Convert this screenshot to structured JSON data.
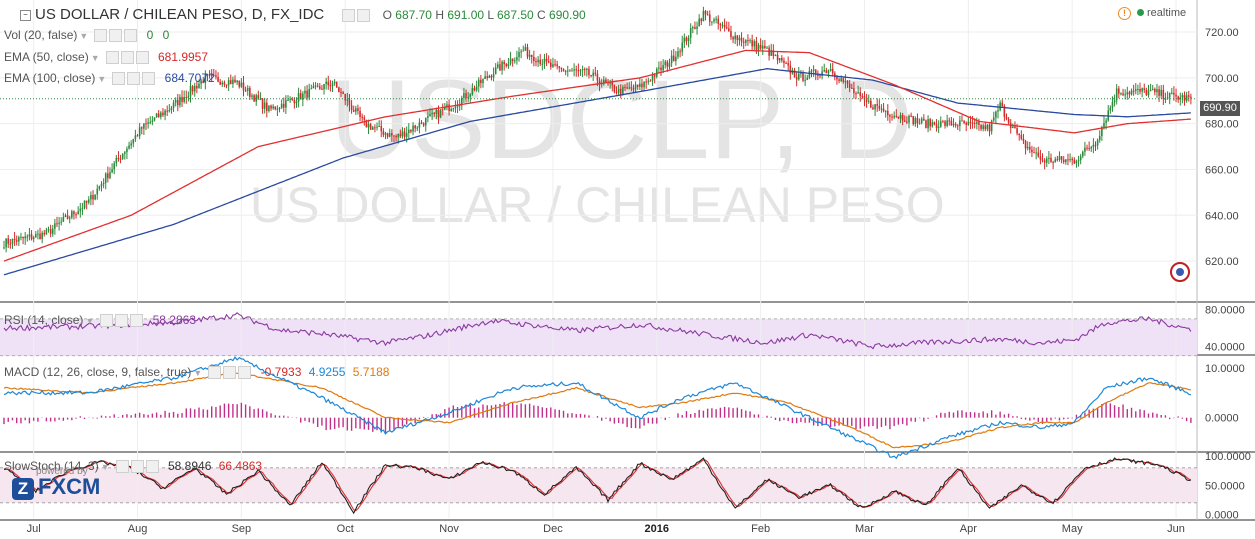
{
  "header": {
    "title": "US DOLLAR / CHILEAN PESO, D, FX_IDC",
    "ohlc": {
      "o_label": "O",
      "o": "687.70",
      "h_label": "H",
      "h": "691.00",
      "l_label": "L",
      "l": "687.50",
      "c_label": "C",
      "c": "690.90"
    },
    "realtime": "realtime"
  },
  "indicators": {
    "vol": {
      "label": "Vol (20, false)",
      "v1": "0",
      "v2": "0"
    },
    "ema50": {
      "label": "EMA (50, close)",
      "value": "681.9957"
    },
    "ema100": {
      "label": "EMA (100, close)",
      "value": "684.7072"
    },
    "rsi": {
      "label": "RSI (14, close)",
      "value": "58.2863"
    },
    "macd": {
      "label": "MACD (12, 26, close, 9, false, true)",
      "hist": "-0.7933",
      "macd": "4.9255",
      "signal": "5.7188"
    },
    "stoch": {
      "label": "SlowStoch (14, 3)",
      "k": "58.8946",
      "d": "66.4863"
    }
  },
  "watermark": {
    "symbol": "USDCLP, D",
    "name": "US DOLLAR / CHILEAN PESO"
  },
  "logo": {
    "text": "FXCM",
    "powered": "powered by"
  },
  "colors": {
    "up": "#2a8a3a",
    "down": "#d32a2a",
    "ema50": "#e03030",
    "ema100": "#2a4aa0",
    "rsi": "#8a3aa0",
    "macd": "#1e88d8",
    "signal": "#e07a10",
    "hist": "#c0308a",
    "k": "#222222",
    "d": "#e03030"
  },
  "chart_data": [
    {
      "type": "candlestick",
      "title": "US DOLLAR / CHILEAN PESO, D, FX_IDC",
      "x_labels": [
        "Jul",
        "Aug",
        "Sep",
        "Oct",
        "Nov",
        "Dec",
        "2016",
        "Feb",
        "Mar",
        "Apr",
        "May",
        "Jun"
      ],
      "x_label_days": [
        14,
        63,
        112,
        161,
        210,
        259,
        308,
        357,
        406,
        455,
        504,
        553
      ],
      "ylim": [
        603,
        734
      ],
      "yticks": [
        620,
        640,
        660,
        680,
        700,
        720
      ],
      "last_price": "690.90",
      "close_anchors": [
        [
          0,
          628
        ],
        [
          20,
          632
        ],
        [
          40,
          646
        ],
        [
          55,
          666
        ],
        [
          65,
          678
        ],
        [
          80,
          688
        ],
        [
          95,
          700
        ],
        [
          110,
          698
        ],
        [
          125,
          686
        ],
        [
          140,
          692
        ],
        [
          155,
          698
        ],
        [
          170,
          680
        ],
        [
          185,
          674
        ],
        [
          200,
          682
        ],
        [
          215,
          690
        ],
        [
          230,
          702
        ],
        [
          245,
          712
        ],
        [
          260,
          704
        ],
        [
          275,
          702
        ],
        [
          290,
          694
        ],
        [
          300,
          696
        ],
        [
          315,
          708
        ],
        [
          330,
          728
        ],
        [
          345,
          718
        ],
        [
          360,
          712
        ],
        [
          375,
          700
        ],
        [
          390,
          704
        ],
        [
          405,
          690
        ],
        [
          420,
          684
        ],
        [
          435,
          680
        ],
        [
          450,
          680
        ],
        [
          465,
          678
        ],
        [
          470,
          688
        ],
        [
          480,
          672
        ],
        [
          490,
          664
        ],
        [
          505,
          664
        ],
        [
          515,
          672
        ],
        [
          525,
          694
        ],
        [
          540,
          694
        ],
        [
          550,
          692
        ],
        [
          560,
          690.9
        ]
      ],
      "ema50_anchors": [
        [
          0,
          620
        ],
        [
          60,
          640
        ],
        [
          120,
          670
        ],
        [
          180,
          683
        ],
        [
          240,
          692
        ],
        [
          300,
          700
        ],
        [
          350,
          712
        ],
        [
          380,
          711
        ],
        [
          420,
          697
        ],
        [
          460,
          681
        ],
        [
          505,
          676
        ],
        [
          530,
          680
        ],
        [
          560,
          682
        ]
      ],
      "ema100_anchors": [
        [
          0,
          614
        ],
        [
          80,
          636
        ],
        [
          160,
          665
        ],
        [
          220,
          681
        ],
        [
          300,
          694
        ],
        [
          360,
          704
        ],
        [
          410,
          699
        ],
        [
          450,
          689
        ],
        [
          505,
          684
        ],
        [
          530,
          683
        ],
        [
          560,
          684.7
        ]
      ]
    },
    {
      "type": "line",
      "title": "RSI (14, close)",
      "ylim": [
        33,
        84
      ],
      "yticks": [
        "80.0000",
        "40.0000"
      ],
      "ytick_values": [
        80,
        40
      ],
      "last": 58.2863,
      "anchors": [
        [
          0,
          60
        ],
        [
          40,
          62
        ],
        [
          80,
          66
        ],
        [
          110,
          74
        ],
        [
          130,
          58
        ],
        [
          150,
          54
        ],
        [
          180,
          44
        ],
        [
          200,
          52
        ],
        [
          230,
          68
        ],
        [
          250,
          63
        ],
        [
          270,
          57
        ],
        [
          300,
          64
        ],
        [
          320,
          57
        ],
        [
          340,
          50
        ],
        [
          360,
          44
        ],
        [
          380,
          53
        ],
        [
          410,
          40
        ],
        [
          440,
          45
        ],
        [
          470,
          48
        ],
        [
          490,
          44
        ],
        [
          505,
          47
        ],
        [
          520,
          66
        ],
        [
          540,
          70
        ],
        [
          560,
          58.3
        ]
      ]
    },
    {
      "type": "line",
      "title": "MACD (12, 26, close, 9, false, true)",
      "ylim": [
        -6.5,
        12
      ],
      "yticks": [
        "10.0000",
        "0.0000"
      ],
      "ytick_values": [
        10,
        0
      ],
      "hist_last": -0.7933,
      "macd_last": 4.9255,
      "signal_last": 5.7188,
      "macd_anchors": [
        [
          0,
          5
        ],
        [
          40,
          5
        ],
        [
          80,
          8
        ],
        [
          110,
          12
        ],
        [
          150,
          4
        ],
        [
          180,
          -3
        ],
        [
          210,
          1
        ],
        [
          240,
          6
        ],
        [
          270,
          7
        ],
        [
          300,
          0
        ],
        [
          320,
          4
        ],
        [
          345,
          7
        ],
        [
          370,
          2
        ],
        [
          400,
          -4
        ],
        [
          420,
          -8
        ],
        [
          445,
          -4
        ],
        [
          470,
          -1
        ],
        [
          490,
          -2
        ],
        [
          505,
          -1
        ],
        [
          520,
          6
        ],
        [
          540,
          8
        ],
        [
          560,
          4.9
        ]
      ],
      "signal_anchors": [
        [
          0,
          6
        ],
        [
          40,
          5
        ],
        [
          80,
          7
        ],
        [
          110,
          9
        ],
        [
          150,
          6
        ],
        [
          180,
          0
        ],
        [
          210,
          -1
        ],
        [
          240,
          3
        ],
        [
          270,
          6
        ],
        [
          300,
          2
        ],
        [
          320,
          3
        ],
        [
          345,
          5
        ],
        [
          370,
          3
        ],
        [
          400,
          -2
        ],
        [
          420,
          -6
        ],
        [
          445,
          -5
        ],
        [
          470,
          -2
        ],
        [
          490,
          -1
        ],
        [
          505,
          -1
        ],
        [
          520,
          3
        ],
        [
          540,
          7
        ],
        [
          560,
          5.7
        ]
      ]
    },
    {
      "type": "line",
      "title": "SlowStoch (14, 3)",
      "ylim": [
        -6,
        102
      ],
      "yticks": [
        "100.0000",
        "50.0000",
        "0.0000"
      ],
      "ytick_values": [
        100,
        50,
        0
      ],
      "k_last": 58.8946,
      "d_last": 66.4863,
      "anchors": [
        [
          0,
          80
        ],
        [
          15,
          40
        ],
        [
          30,
          75
        ],
        [
          45,
          90
        ],
        [
          60,
          80
        ],
        [
          75,
          45
        ],
        [
          90,
          80
        ],
        [
          105,
          35
        ],
        [
          120,
          75
        ],
        [
          135,
          15
        ],
        [
          150,
          90
        ],
        [
          165,
          5
        ],
        [
          180,
          85
        ],
        [
          195,
          80
        ],
        [
          210,
          60
        ],
        [
          225,
          90
        ],
        [
          240,
          75
        ],
        [
          255,
          35
        ],
        [
          270,
          80
        ],
        [
          285,
          25
        ],
        [
          300,
          88
        ],
        [
          315,
          60
        ],
        [
          330,
          95
        ],
        [
          345,
          10
        ],
        [
          360,
          60
        ],
        [
          375,
          30
        ],
        [
          390,
          50
        ],
        [
          405,
          10
        ],
        [
          420,
          40
        ],
        [
          435,
          15
        ],
        [
          450,
          80
        ],
        [
          465,
          10
        ],
        [
          480,
          50
        ],
        [
          495,
          20
        ],
        [
          510,
          80
        ],
        [
          525,
          95
        ],
        [
          545,
          85
        ],
        [
          560,
          58.9
        ]
      ]
    }
  ]
}
